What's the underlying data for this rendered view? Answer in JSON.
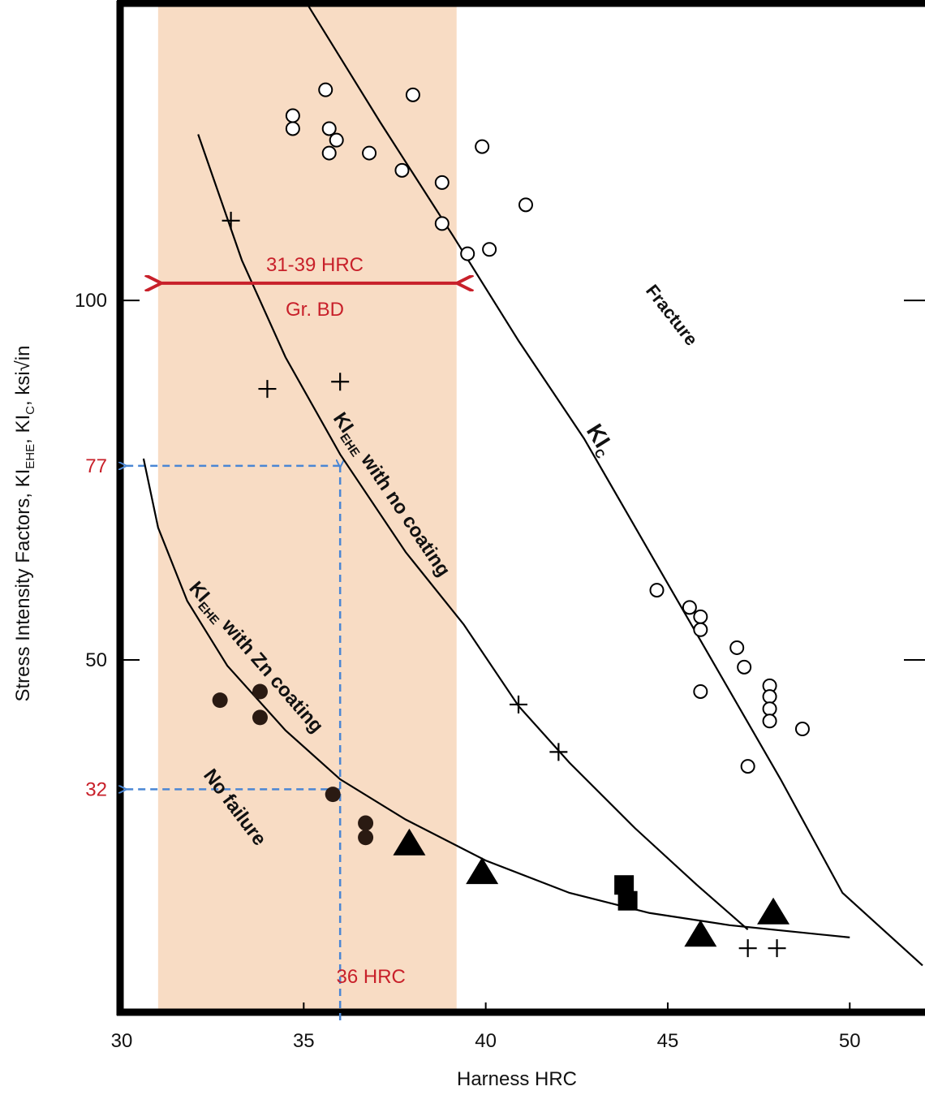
{
  "chart_data": {
    "type": "scatter",
    "xlabel": "Harness HRC",
    "ylabel_parts": [
      {
        "text": "Stress Intensity Factors, KI"
      },
      {
        "text": "EHE",
        "sub": true
      },
      {
        "text": ", KI"
      },
      {
        "text": "C",
        "sub": true
      },
      {
        "text": ", ksi√in"
      }
    ],
    "xlim": [
      30,
      52
    ],
    "ylim": [
      1,
      141
    ],
    "xticks": [
      30,
      35,
      40,
      45,
      50
    ],
    "yticks": [
      50,
      100
    ],
    "band": {
      "xlim": [
        31,
        39.2
      ],
      "color": "#f8dcc4"
    },
    "range_arrow": {
      "x": [
        31,
        39.3
      ],
      "y": 102.4,
      "label": "31-39 HRC",
      "sublabel": "Gr. BD",
      "color": "#c8202a"
    },
    "reference": {
      "x": 36,
      "x_label": "36 HRC",
      "y_values": [
        77,
        32
      ],
      "color": "#4a86d4"
    },
    "series": [
      {
        "marker": "open-circle",
        "color": "#000",
        "x": [
          34.7,
          34.7,
          35.6,
          35.7,
          35.7,
          35.9,
          36.8,
          38.0,
          37.7,
          38.8,
          38.8,
          39.5,
          40.1,
          39.9,
          41.1,
          44.7,
          45.6,
          45.9,
          45.9,
          45.9,
          46.9,
          47.1,
          47.8,
          47.8,
          47.8,
          47.8,
          48.7,
          47.2
        ],
        "y": [
          125.7,
          123.9,
          129.3,
          123.9,
          120.5,
          122.3,
          120.5,
          128.6,
          118.1,
          116.4,
          110.7,
          106.5,
          107.1,
          121.4,
          113.3,
          59.7,
          57.3,
          56.0,
          54.2,
          45.6,
          51.7,
          49.0,
          46.4,
          44.9,
          43.2,
          41.5,
          40.4,
          35.2
        ]
      },
      {
        "marker": "plus",
        "color": "#000",
        "x": [
          33.0,
          34.0,
          36.0,
          40.9,
          42.0,
          47.2,
          48.0
        ],
        "y": [
          111.1,
          87.7,
          88.7,
          43.8,
          37.2,
          9.9,
          9.9
        ]
      },
      {
        "marker": "filled-circle",
        "color": "#2a1a12",
        "x": [
          32.7,
          33.8,
          33.8,
          35.8,
          36.7,
          36.7
        ],
        "y": [
          44.4,
          45.6,
          42.0,
          31.3,
          27.3,
          25.3
        ]
      },
      {
        "marker": "triangle",
        "color": "#000",
        "x": [
          37.9,
          39.9,
          45.9,
          47.9
        ],
        "y": [
          24.4,
          20.4,
          11.7,
          14.8
        ]
      },
      {
        "marker": "square",
        "color": "#000",
        "x": [
          43.8,
          43.9
        ],
        "y": [
          18.7,
          16.5
        ]
      }
    ],
    "curves": [
      {
        "color": "#000",
        "x": [
          35.1,
          37.1,
          39.1,
          40.9,
          42.7,
          44.5,
          46.3,
          48.1,
          49.8,
          52.0
        ],
        "y": [
          141.2,
          124.8,
          109.0,
          94.4,
          80.8,
          65.0,
          49.2,
          33.4,
          17.6,
          7.5
        ]
      },
      {
        "color": "#000",
        "x": [
          32.1,
          33.3,
          34.5,
          36.0,
          37.8,
          39.4,
          40.9,
          42.3,
          44.1,
          45.8,
          47.2
        ],
        "y": [
          123.1,
          105.6,
          92.1,
          78.6,
          65.0,
          54.9,
          43.6,
          35.7,
          26.6,
          18.7,
          12.5
        ]
      },
      {
        "color": "#000",
        "x": [
          30.6,
          31.0,
          31.8,
          32.9,
          34.5,
          36.0,
          37.8,
          40.0,
          42.3,
          44.5,
          46.7,
          50.0
        ],
        "y": [
          78.0,
          68.4,
          58.2,
          49.2,
          40.2,
          33.4,
          27.8,
          22.1,
          17.6,
          14.8,
          13.1,
          11.4
        ]
      }
    ],
    "annotations": [
      {
        "parts": [
          {
            "text": "Fracture"
          }
        ]
      },
      {
        "parts": [
          {
            "text": "KI"
          },
          {
            "text": "C",
            "sub": true
          }
        ]
      },
      {
        "parts": [
          {
            "text": "KI"
          },
          {
            "text": "EHE",
            "sub": true
          },
          {
            "text": " with no coating"
          }
        ]
      },
      {
        "parts": [
          {
            "text": "KI"
          },
          {
            "text": "EHE",
            "sub": true
          },
          {
            "text": " with Zn coating"
          }
        ]
      },
      {
        "parts": [
          {
            "text": "No failure"
          }
        ]
      }
    ]
  }
}
